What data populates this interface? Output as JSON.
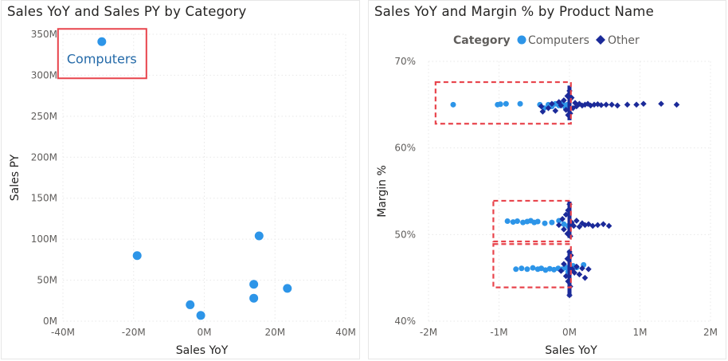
{
  "chart_data": [
    {
      "type": "scatter",
      "title": "Sales YoY and Sales PY by Category",
      "xlabel": "Sales YoY",
      "ylabel": "Sales PY",
      "xlim": [
        -40,
        40
      ],
      "ylim": [
        0,
        350
      ],
      "x_ticks": [
        "-40M",
        "-20M",
        "0M",
        "20M",
        "40M"
      ],
      "y_ticks": [
        "0M",
        "50M",
        "100M",
        "150M",
        "200M",
        "250M",
        "300M",
        "350M"
      ],
      "grid": true,
      "point_color": "#2d95e8",
      "points": [
        {
          "x": -29,
          "y": 341,
          "label": "Computers"
        },
        {
          "x": -19,
          "y": 80
        },
        {
          "x": -4,
          "y": 20
        },
        {
          "x": -1,
          "y": 7
        },
        {
          "x": 14,
          "y": 45
        },
        {
          "x": 14,
          "y": 28
        },
        {
          "x": 15.5,
          "y": 104
        },
        {
          "x": 23.5,
          "y": 40
        }
      ],
      "highlight_box_color": "#e8444c"
    },
    {
      "type": "scatter",
      "title": "Sales YoY and Margin % by Product Name",
      "xlabel": "Sales YoY",
      "ylabel": "Margin %",
      "xlim": [
        -2,
        2
      ],
      "ylim": [
        40,
        70
      ],
      "x_ticks": [
        "-2M",
        "-1M",
        "0M",
        "1M",
        "2M"
      ],
      "y_ticks": [
        "40%",
        "50%",
        "60%",
        "70%"
      ],
      "grid": true,
      "legend": {
        "title": "Category",
        "position": "top-center",
        "items": [
          {
            "name": "Computers",
            "shape": "circle",
            "color": "#2d95e8"
          },
          {
            "name": "Other",
            "shape": "diamond",
            "color": "#1b2a99"
          }
        ]
      },
      "series": [
        {
          "name": "Computers",
          "color": "#2d95e8",
          "points": [
            [
              -1.65,
              65.0
            ],
            [
              -1.02,
              65.0
            ],
            [
              -0.98,
              65.05
            ],
            [
              -0.9,
              65.1
            ],
            [
              -0.7,
              65.1
            ],
            [
              -0.42,
              65.0
            ],
            [
              -0.36,
              64.6
            ],
            [
              -0.3,
              65.0
            ],
            [
              -0.25,
              64.8
            ],
            [
              -0.2,
              65.1
            ],
            [
              -0.15,
              64.9
            ],
            [
              -0.1,
              65.2
            ],
            [
              -0.06,
              64.7
            ],
            [
              -0.03,
              65.0
            ],
            [
              -0.88,
              51.55
            ],
            [
              -0.8,
              51.45
            ],
            [
              -0.74,
              51.55
            ],
            [
              -0.66,
              51.4
            ],
            [
              -0.6,
              51.5
            ],
            [
              -0.55,
              51.6
            ],
            [
              -0.5,
              51.4
            ],
            [
              -0.45,
              51.5
            ],
            [
              -0.35,
              51.3
            ],
            [
              -0.25,
              51.4
            ],
            [
              -0.15,
              51.6
            ],
            [
              -0.08,
              51.2
            ],
            [
              -0.02,
              51.0
            ],
            [
              -0.76,
              46.0
            ],
            [
              -0.68,
              46.1
            ],
            [
              -0.6,
              46.0
            ],
            [
              -0.52,
              46.15
            ],
            [
              -0.45,
              46.0
            ],
            [
              -0.4,
              46.1
            ],
            [
              -0.34,
              45.9
            ],
            [
              -0.28,
              46.05
            ],
            [
              -0.22,
              45.95
            ],
            [
              -0.16,
              46.1
            ],
            [
              -0.1,
              46.0
            ],
            [
              -0.05,
              46.2
            ],
            [
              -0.02,
              45.7
            ],
            [
              0.05,
              46.4
            ],
            [
              0.1,
              46.2
            ],
            [
              0.2,
              46.5
            ]
          ]
        },
        {
          "name": "Other",
          "color": "#1b2a99",
          "points": [
            [
              -0.4,
              64.8
            ],
            [
              -0.3,
              64.6
            ],
            [
              -0.38,
              64.2
            ],
            [
              -0.25,
              65.1
            ],
            [
              -0.2,
              64.3
            ],
            [
              -0.15,
              65.3
            ],
            [
              -0.12,
              64.9
            ],
            [
              -0.08,
              65.5
            ],
            [
              -0.05,
              64.4
            ],
            [
              -0.03,
              66.0
            ],
            [
              -0.02,
              63.8
            ],
            [
              0.0,
              66.6
            ],
            [
              0.01,
              64.0
            ],
            [
              0.03,
              65.8
            ],
            [
              0.05,
              64.6
            ],
            [
              0.08,
              65.2
            ],
            [
              0.1,
              64.8
            ],
            [
              0.14,
              65.1
            ],
            [
              0.18,
              64.9
            ],
            [
              0.22,
              65.0
            ],
            [
              0.26,
              65.1
            ],
            [
              0.3,
              64.9
            ],
            [
              0.35,
              65.0
            ],
            [
              0.4,
              65.05
            ],
            [
              0.45,
              64.95
            ],
            [
              0.52,
              65.0
            ],
            [
              0.6,
              65.0
            ],
            [
              0.68,
              64.9
            ],
            [
              0.82,
              65.0
            ],
            [
              0.95,
              65.0
            ],
            [
              1.05,
              65.1
            ],
            [
              1.3,
              65.1
            ],
            [
              1.52,
              65.0
            ],
            [
              -0.15,
              51.1
            ],
            [
              -0.1,
              51.8
            ],
            [
              -0.08,
              50.6
            ],
            [
              -0.05,
              52.3
            ],
            [
              -0.03,
              50.1
            ],
            [
              -0.02,
              52.8
            ],
            [
              0.0,
              53.5
            ],
            [
              0.01,
              49.8
            ],
            [
              0.03,
              51.4
            ],
            [
              0.06,
              51.0
            ],
            [
              0.1,
              51.6
            ],
            [
              0.14,
              50.9
            ],
            [
              0.18,
              51.3
            ],
            [
              0.22,
              51.1
            ],
            [
              0.27,
              51.2
            ],
            [
              0.33,
              51.0
            ],
            [
              0.4,
              51.1
            ],
            [
              0.48,
              51.2
            ],
            [
              0.56,
              51.0
            ],
            [
              -0.12,
              45.8
            ],
            [
              -0.08,
              46.6
            ],
            [
              -0.05,
              45.2
            ],
            [
              -0.03,
              47.2
            ],
            [
              -0.02,
              44.6
            ],
            [
              0.0,
              48.0
            ],
            [
              0.0,
              43.0
            ],
            [
              0.01,
              44.0
            ],
            [
              0.02,
              47.6
            ],
            [
              0.04,
              46.0
            ],
            [
              0.07,
              45.6
            ],
            [
              0.1,
              46.3
            ],
            [
              0.14,
              45.4
            ],
            [
              0.18,
              46.1
            ],
            [
              0.22,
              45.0
            ],
            [
              0.27,
              46.0
            ]
          ]
        }
      ],
      "highlight_box_color": "#e8444c"
    }
  ]
}
